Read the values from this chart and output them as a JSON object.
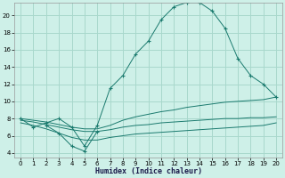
{
  "xlabel": "Humidex (Indice chaleur)",
  "bg_color": "#cef0e8",
  "grid_color": "#a8d8cc",
  "line_color": "#1a7a6e",
  "xlim": [
    -0.5,
    20.5
  ],
  "ylim": [
    3.5,
    21.5
  ],
  "yticks": [
    4,
    6,
    8,
    10,
    12,
    14,
    16,
    18,
    20
  ],
  "xticks": [
    0,
    1,
    2,
    3,
    4,
    5,
    6,
    7,
    8,
    9,
    10,
    11,
    12,
    13,
    14,
    15,
    16,
    17,
    18,
    19,
    20
  ],
  "series": [
    {
      "x": [
        0,
        1,
        2,
        3,
        4,
        5,
        6,
        7,
        8,
        9,
        10,
        11,
        12,
        13,
        14,
        15,
        16,
        17,
        18,
        19,
        20
      ],
      "y": [
        8,
        7,
        7.5,
        8,
        7,
        4.8,
        7.2,
        11.5,
        13,
        15.5,
        17,
        19.5,
        21,
        21.5,
        21.5,
        20.5,
        18.5,
        15,
        13,
        12,
        10.5
      ],
      "marker": "+"
    },
    {
      "x": [
        2,
        3,
        4,
        5,
        6
      ],
      "y": [
        7.2,
        6.3,
        4.8,
        4.2,
        6.5
      ],
      "marker": "+"
    },
    {
      "x": [
        0,
        1,
        2,
        3,
        4,
        5,
        6,
        7,
        8,
        9,
        10,
        11,
        12,
        13,
        14,
        15,
        16,
        17,
        18,
        19,
        20
      ],
      "y": [
        8.0,
        7.8,
        7.6,
        7.3,
        7.0,
        6.8,
        6.8,
        7.2,
        7.8,
        8.2,
        8.5,
        8.8,
        9.0,
        9.3,
        9.5,
        9.7,
        9.9,
        10.0,
        10.1,
        10.2,
        10.5
      ],
      "marker": null
    },
    {
      "x": [
        0,
        1,
        2,
        3,
        4,
        5,
        6,
        7,
        8,
        9,
        10,
        11,
        12,
        13,
        14,
        15,
        16,
        17,
        18,
        19,
        20
      ],
      "y": [
        7.8,
        7.6,
        7.3,
        7.0,
        6.7,
        6.5,
        6.5,
        6.7,
        7.0,
        7.2,
        7.3,
        7.5,
        7.6,
        7.7,
        7.8,
        7.9,
        8.0,
        8.0,
        8.1,
        8.1,
        8.2
      ],
      "marker": null
    },
    {
      "x": [
        0,
        1,
        2,
        3,
        4,
        5,
        6,
        7,
        8,
        9,
        10,
        11,
        12,
        13,
        14,
        15,
        16,
        17,
        18,
        19,
        20
      ],
      "y": [
        7.5,
        7.2,
        6.8,
        6.3,
        5.8,
        5.5,
        5.5,
        5.8,
        6.0,
        6.2,
        6.3,
        6.4,
        6.5,
        6.6,
        6.7,
        6.8,
        6.9,
        7.0,
        7.1,
        7.2,
        7.5
      ],
      "marker": null
    }
  ]
}
